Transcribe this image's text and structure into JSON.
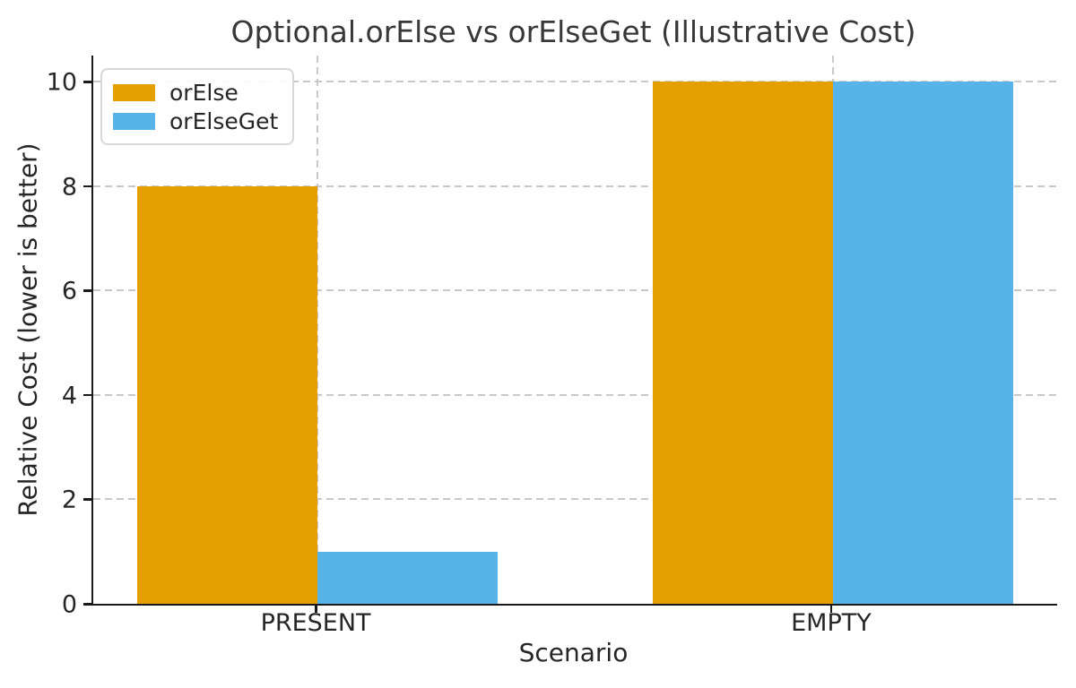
{
  "chart_data": {
    "type": "bar",
    "title": "Optional.orElse vs orElseGet (Illustrative Cost)",
    "xlabel": "Scenario",
    "ylabel": "Relative Cost (lower is better)",
    "categories": [
      "PRESENT",
      "EMPTY"
    ],
    "series": [
      {
        "name": "orElse",
        "color": "#E69F00",
        "values": [
          8,
          10
        ]
      },
      {
        "name": "orElseGet",
        "color": "#56B4E9",
        "values": [
          1,
          10
        ]
      }
    ],
    "yticks": [
      0,
      2,
      4,
      6,
      8,
      10
    ],
    "ylim": [
      0,
      10.5
    ],
    "bar_width_fraction": 0.35,
    "grid": true,
    "grid_style": "dashed",
    "legend_position": "upper left"
  },
  "colors": {
    "background": "#ffffff",
    "grid": "#c9c9c9",
    "spine": "#1a1a1a",
    "text": "#262626",
    "title_text": "#383838",
    "orElse": "#E69F00",
    "orElseGet": "#56B4E9"
  }
}
